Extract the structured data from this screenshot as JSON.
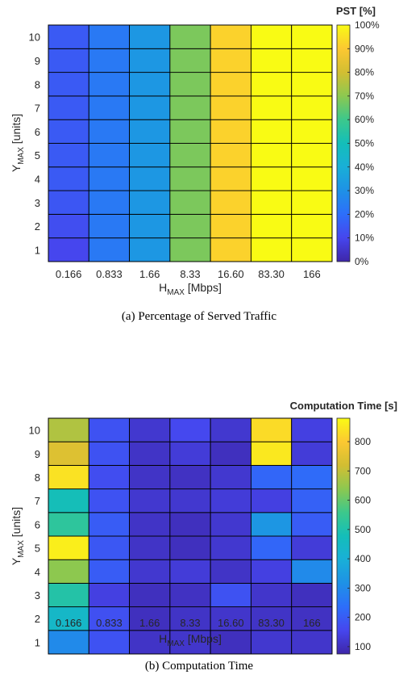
{
  "chart_data": [
    {
      "type": "heatmap",
      "caption": "(a) Percentage of Served Traffic",
      "colorbar_title": "PST [%]",
      "colorbar_ticks": [
        "0%",
        "10%",
        "20%",
        "30%",
        "40%",
        "50%",
        "60%",
        "70%",
        "80%",
        "90%",
        "100%"
      ],
      "clim": [
        0,
        100
      ],
      "x_categories": [
        "0.166",
        "0.833",
        "1.66",
        "8.33",
        "16.60",
        "83.30",
        "166"
      ],
      "y_categories": [
        "1",
        "2",
        "3",
        "4",
        "5",
        "6",
        "7",
        "8",
        "9",
        "10"
      ],
      "xlabel": {
        "main": "H",
        "sub": "MAX",
        "tail": " [Mbps]"
      },
      "ylabel": {
        "main": "Y",
        "sub": "MAX",
        "tail": " [units]"
      },
      "values": [
        [
          10,
          23,
          32,
          68,
          92,
          100,
          100
        ],
        [
          12,
          23,
          32,
          68,
          92,
          100,
          100
        ],
        [
          14,
          23,
          32,
          68,
          92,
          100,
          100
        ],
        [
          15,
          23,
          32,
          68,
          92,
          100,
          100
        ],
        [
          15,
          23,
          32,
          68,
          92,
          100,
          100
        ],
        [
          15,
          23,
          32,
          68,
          92,
          100,
          100
        ],
        [
          15,
          23,
          32,
          68,
          92,
          100,
          100
        ],
        [
          15,
          23,
          32,
          68,
          92,
          100,
          100
        ],
        [
          15,
          23,
          32,
          68,
          92,
          100,
          100
        ],
        [
          15,
          23,
          32,
          68,
          92,
          100,
          100
        ]
      ]
    },
    {
      "type": "heatmap",
      "caption": "(b) Computation Time",
      "colorbar_title": "Computation Time [s]",
      "colorbar_ticks": [
        "100",
        "200",
        "300",
        "400",
        "500",
        "600",
        "700",
        "800"
      ],
      "clim": [
        75,
        880
      ],
      "x_categories": [
        "0.166",
        "0.833",
        "1.66",
        "8.33",
        "16.60",
        "83.30",
        "166"
      ],
      "y_categories": [
        "1",
        "2",
        "3",
        "4",
        "5",
        "6",
        "7",
        "8",
        "9",
        "10"
      ],
      "xlabel": {
        "main": "H",
        "sub": "MAX",
        "tail": " [Mbps]"
      },
      "ylabel": {
        "main": "Y",
        "sub": "MAX",
        "tail": " [units]"
      },
      "values": [
        [
          300,
          180,
          110,
          115,
          100,
          120,
          115
        ],
        [
          440,
          175,
          100,
          110,
          115,
          110,
          105
        ],
        [
          510,
          140,
          100,
          105,
          180,
          115,
          100
        ],
        [
          640,
          200,
          120,
          130,
          110,
          140,
          300
        ],
        [
          860,
          190,
          110,
          100,
          120,
          220,
          130
        ],
        [
          530,
          200,
          110,
          100,
          120,
          330,
          200
        ],
        [
          480,
          180,
          120,
          120,
          130,
          140,
          210
        ],
        [
          840,
          170,
          110,
          105,
          120,
          220,
          230
        ],
        [
          740,
          180,
          110,
          130,
          100,
          850,
          130
        ],
        [
          680,
          180,
          120,
          160,
          120,
          830,
          140
        ]
      ]
    }
  ]
}
